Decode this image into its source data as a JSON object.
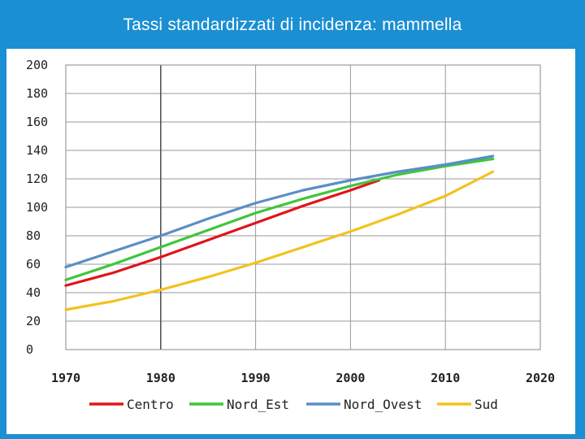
{
  "page": {
    "title": "Tassi standardizzati di incidenza: mammella",
    "frame_color": "#1b8fd3"
  },
  "chart_data": {
    "type": "line",
    "title": "",
    "xlabel": "",
    "ylabel": "",
    "xlim": [
      1970,
      2020
    ],
    "ylim": [
      0,
      200
    ],
    "xticks": [
      1970,
      1980,
      1990,
      2000,
      2010,
      2020
    ],
    "yticks": [
      0,
      20,
      40,
      60,
      80,
      100,
      120,
      140,
      160,
      180,
      200
    ],
    "grid": true,
    "legend_position": "bottom",
    "series": [
      {
        "name": "Centro",
        "color": "#e0141b",
        "x": [
          1970,
          1975,
          1980,
          1985,
          1990,
          1995,
          2000,
          2003
        ],
        "y": [
          45,
          54,
          65,
          77,
          89,
          101,
          112,
          119
        ]
      },
      {
        "name": "Nord_Est",
        "color": "#3ec63a",
        "x": [
          1970,
          1975,
          1980,
          1985,
          1990,
          1995,
          2000,
          2005,
          2010,
          2015
        ],
        "y": [
          49,
          60,
          72,
          84,
          96,
          106,
          115,
          123,
          129,
          134
        ]
      },
      {
        "name": "Nord_Ovest",
        "color": "#5b8ec6",
        "x": [
          1970,
          1975,
          1980,
          1985,
          1990,
          1995,
          2000,
          2005,
          2010,
          2015
        ],
        "y": [
          58,
          69,
          80,
          92,
          103,
          112,
          119,
          125,
          130,
          136
        ]
      },
      {
        "name": "Sud",
        "color": "#f3c21c",
        "x": [
          1970,
          1975,
          1980,
          1985,
          1990,
          1995,
          2000,
          2005,
          2010,
          2015
        ],
        "y": [
          28,
          34,
          42,
          51,
          61,
          72,
          83,
          95,
          108,
          125
        ]
      }
    ]
  }
}
